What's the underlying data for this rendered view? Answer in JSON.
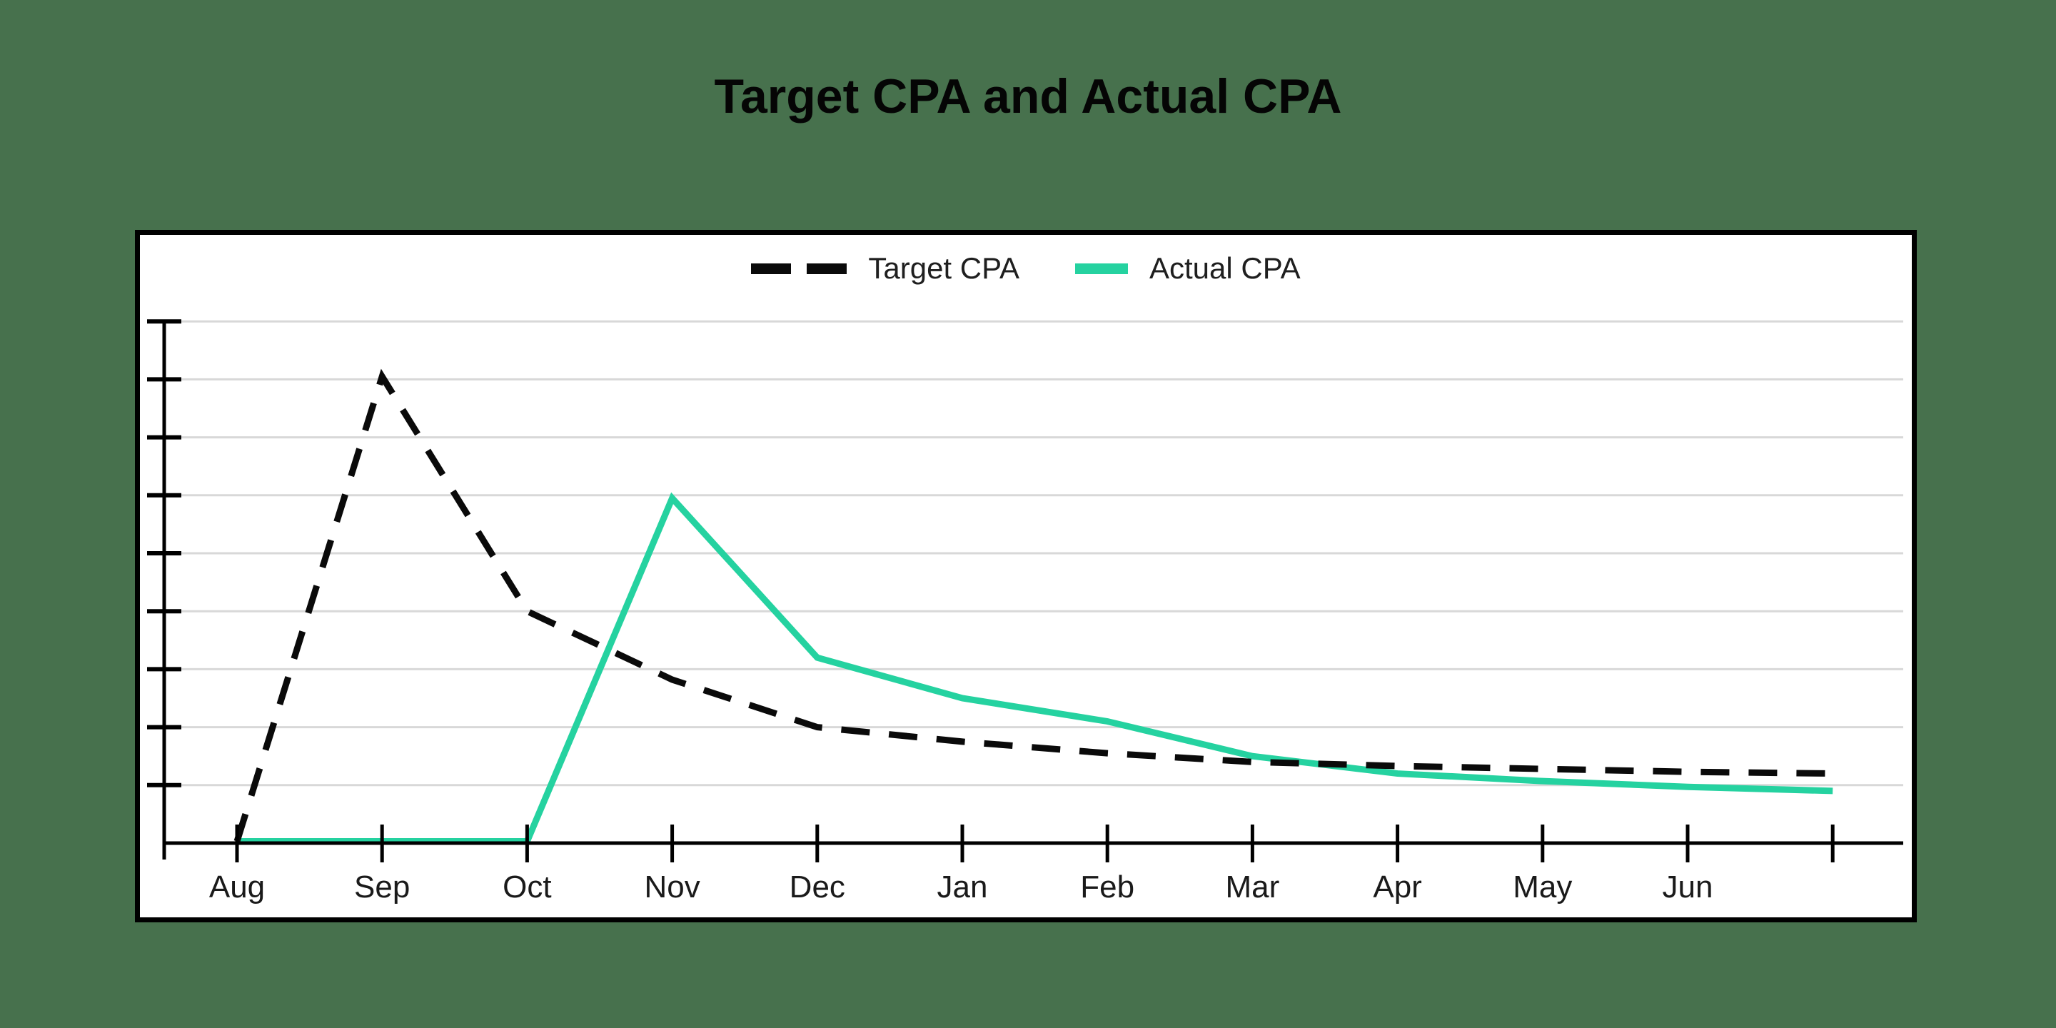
{
  "page": {
    "background_color": "#47714D",
    "panel_background": "#FFFFFF",
    "panel_border_color": "#000000",
    "gridline_color": "#D8D8D8",
    "axis_color": "#000000"
  },
  "title": "Target CPA and Actual CPA",
  "legend": {
    "items": [
      {
        "label": "Target CPA",
        "style": "dashed",
        "color": "#0A0A0A"
      },
      {
        "label": "Actual CPA",
        "style": "solid",
        "color": "#25D2A0"
      }
    ]
  },
  "chart_data": {
    "type": "line",
    "title": "Target CPA and Actual CPA",
    "xlabel": "",
    "ylabel": "",
    "categories": [
      "Aug",
      "Sep",
      "Oct",
      "Nov",
      "Dec",
      "Jan",
      "Feb",
      "Mar",
      "Apr",
      "May",
      "Jun",
      ""
    ],
    "x_axis": {
      "labels": [
        "Aug",
        "Sep",
        "Oct",
        "Nov",
        "Dec",
        "Jan",
        "Feb",
        "Mar",
        "Apr",
        "May",
        "Jun"
      ],
      "extra_tick_without_label": true
    },
    "y_axis": {
      "tick_labels_visible": false,
      "gridlines": [
        1,
        2,
        3,
        4,
        5,
        6,
        7,
        8,
        9
      ]
    },
    "ylim": [
      0,
      9
    ],
    "grid": true,
    "legend_position": "top-center",
    "series": [
      {
        "name": "Target CPA",
        "style": "dashed",
        "color": "#0A0A0A",
        "values": [
          0,
          8.05,
          4.0,
          2.82,
          2.0,
          1.75,
          1.55,
          1.4,
          1.33,
          1.28,
          1.23,
          1.2
        ]
      },
      {
        "name": "Actual CPA",
        "style": "solid",
        "color": "#25D2A0",
        "values": [
          0,
          0,
          0,
          5.95,
          3.2,
          2.5,
          2.1,
          1.5,
          1.2,
          1.07,
          0.97,
          0.9
        ]
      }
    ]
  }
}
